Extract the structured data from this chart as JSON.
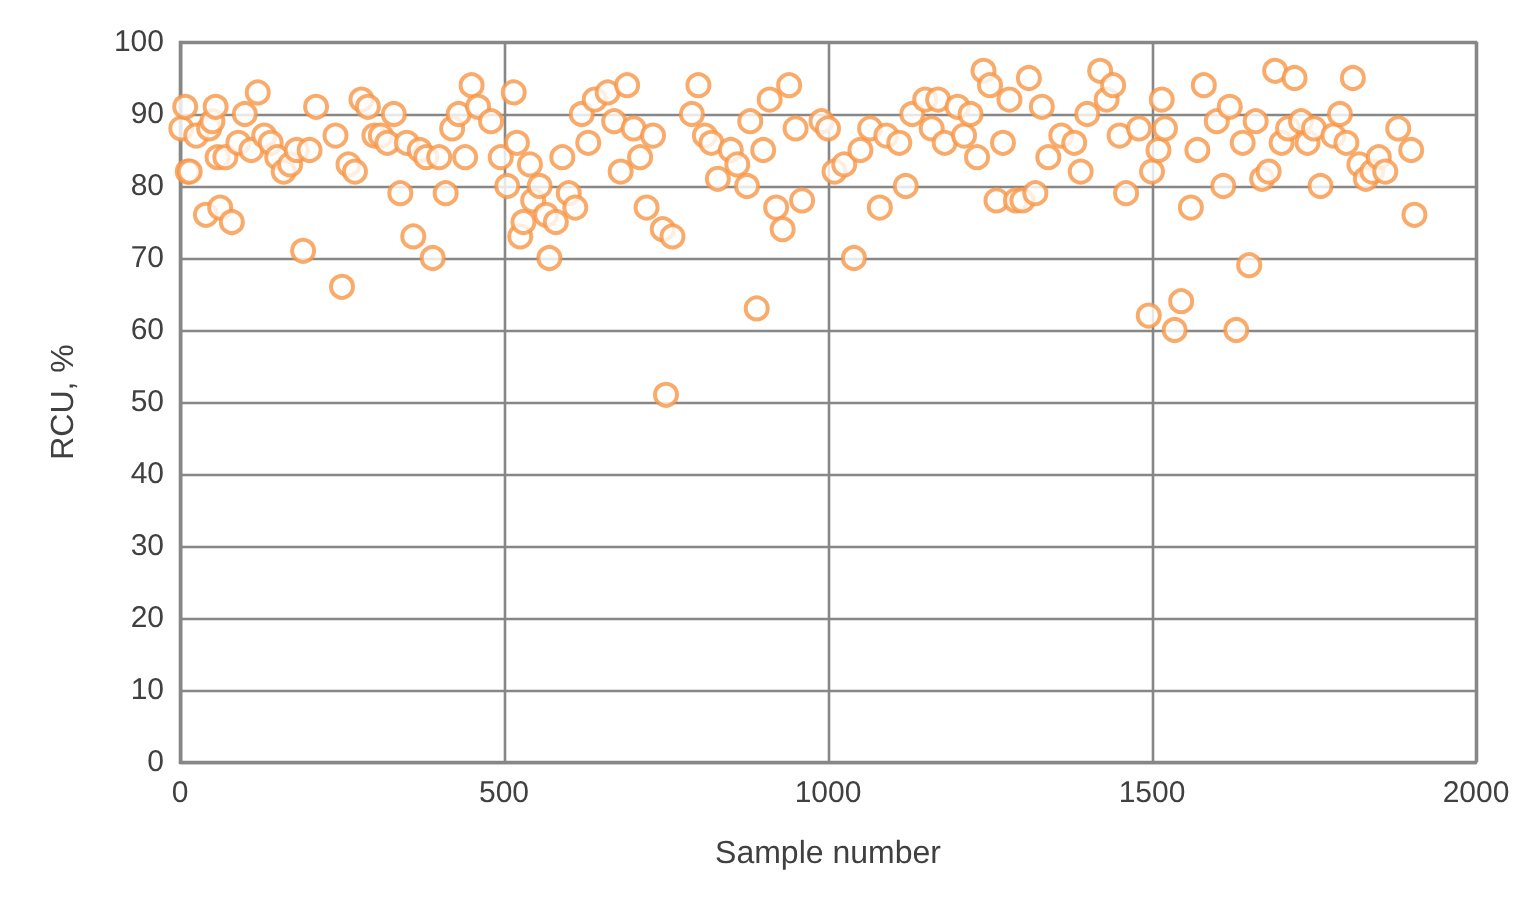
{
  "chart_data": {
    "type": "scatter",
    "xlabel": "Sample number",
    "ylabel": "RCU, %",
    "xlim": [
      0,
      2000
    ],
    "ylim": [
      0,
      100
    ],
    "xticks": [
      0,
      500,
      1000,
      1500,
      2000
    ],
    "yticks": [
      0,
      10,
      20,
      30,
      40,
      50,
      60,
      70,
      80,
      90,
      100
    ],
    "grid": true,
    "marker": "circle",
    "series": [
      {
        "color": "#f79646",
        "x": [
          2,
          8,
          12,
          15,
          25,
          40,
          45,
          50,
          55,
          58,
          62,
          70,
          80,
          90,
          100,
          110,
          120,
          130,
          140,
          150,
          160,
          170,
          180,
          190,
          200,
          210,
          240,
          250,
          260,
          270,
          280,
          290,
          300,
          310,
          320,
          330,
          340,
          350,
          360,
          370,
          380,
          390,
          400,
          410,
          420,
          430,
          440,
          450,
          460,
          480,
          495,
          505,
          515,
          520,
          525,
          530,
          540,
          545,
          555,
          565,
          570,
          580,
          590,
          600,
          610,
          620,
          630,
          640,
          660,
          670,
          680,
          690,
          700,
          710,
          720,
          730,
          745,
          750,
          760,
          790,
          800,
          810,
          820,
          830,
          850,
          860,
          875,
          880,
          890,
          900,
          910,
          920,
          930,
          940,
          950,
          960,
          990,
          1000,
          1010,
          1025,
          1040,
          1050,
          1065,
          1080,
          1090,
          1110,
          1120,
          1130,
          1150,
          1160,
          1170,
          1180,
          1200,
          1210,
          1220,
          1230,
          1240,
          1250,
          1260,
          1270,
          1280,
          1290,
          1300,
          1310,
          1320,
          1330,
          1340,
          1360,
          1380,
          1390,
          1400,
          1420,
          1430,
          1440,
          1450,
          1460,
          1480,
          1500,
          1510,
          1495,
          1515,
          1520,
          1535,
          1545,
          1560,
          1570,
          1580,
          1600,
          1610,
          1620,
          1630,
          1640,
          1650,
          1660,
          1670,
          1680,
          1690,
          1700,
          1710,
          1720,
          1730,
          1740,
          1750,
          1760,
          1780,
          1790,
          1800,
          1810,
          1820,
          1830,
          1840,
          1850,
          1860,
          1880,
          1900,
          1905
        ],
        "values": [
          88,
          91,
          82,
          82,
          87,
          76,
          88,
          89,
          91,
          84,
          77,
          84,
          75,
          86,
          90,
          85,
          93,
          87,
          86,
          84,
          82,
          83,
          85,
          71,
          85,
          91,
          87,
          66,
          83,
          82,
          92,
          91,
          87,
          87,
          86,
          90,
          79,
          86,
          73,
          85,
          84,
          70,
          84,
          79,
          88,
          90,
          84,
          94,
          91,
          89,
          84,
          80,
          93,
          86,
          73,
          75,
          83,
          78,
          80,
          76,
          70,
          75,
          84,
          79,
          77,
          90,
          86,
          92,
          93,
          89,
          82,
          94,
          88,
          84,
          77,
          87,
          74,
          51,
          73,
          90,
          94,
          87,
          86,
          81,
          85,
          83,
          80,
          89,
          63,
          85,
          92,
          77,
          74,
          94,
          88,
          78,
          89,
          88,
          82,
          83,
          70,
          85,
          88,
          77,
          87,
          86,
          80,
          90,
          92,
          88,
          92,
          86,
          91,
          87,
          90,
          84,
          96,
          94,
          78,
          86,
          92,
          78,
          78,
          95,
          79,
          91,
          84,
          87,
          86,
          82,
          90,
          96,
          92,
          94,
          87,
          79,
          88,
          82,
          85,
          62,
          92,
          88,
          60,
          64,
          77,
          85,
          94,
          89,
          80,
          91,
          60,
          86,
          69,
          89,
          81,
          82,
          96,
          86,
          88,
          95,
          89,
          86,
          88,
          80,
          87,
          90,
          86,
          95,
          83,
          81,
          82,
          84,
          82,
          88,
          85,
          76
        ]
      }
    ]
  }
}
